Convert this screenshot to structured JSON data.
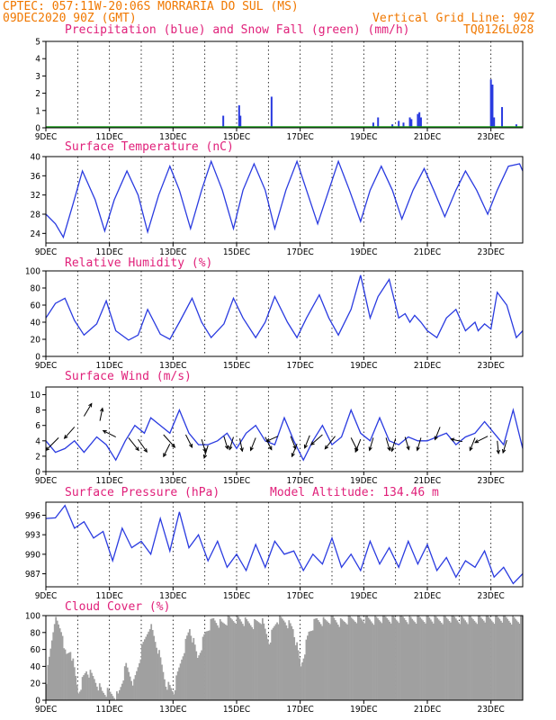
{
  "header": {
    "line1_left": "CPTEC:  057:11W-20:06S  MORRARIA DO SUL (MS)",
    "line2_left": "09DEC2020 90Z (GMT)",
    "line2_right": "Vertical Grid Line: 90Z",
    "line3_right": "TQ0126L028"
  },
  "colors": {
    "header": "#f07800",
    "title": "#e0207a",
    "line": "#2a3be0",
    "snow": "#1a9a1a",
    "cloud": "#a0a0a0",
    "arrow": "#000000"
  },
  "chart_data": [
    {
      "id": "precip",
      "type": "bar",
      "title": "Precipitation (blue) and Snow Fall (green) (mm/h)",
      "ylim": [
        0,
        5
      ],
      "yticks": [
        0,
        1,
        2,
        3,
        4,
        5
      ],
      "xlim": [
        0,
        15
      ],
      "xticks": [
        0,
        2,
        4,
        6,
        8,
        10,
        12,
        14
      ],
      "xtick_labels": [
        "9DEC",
        "11DEC",
        "13DEC",
        "15DEC",
        "17DEC",
        "19DEC",
        "21DEC",
        "23DEC"
      ],
      "series": [
        {
          "name": "Precipitation",
          "color": "#2a3be0",
          "x": [
            5.58,
            6.08,
            6.12,
            7.1,
            10.3,
            10.45,
            10.9,
            11.1,
            11.25,
            11.45,
            11.5,
            11.7,
            11.75,
            11.8,
            14.0,
            14.05,
            14.1,
            14.35,
            14.8
          ],
          "values": [
            0.7,
            1.3,
            0.7,
            1.8,
            0.3,
            0.6,
            0.2,
            0.4,
            0.3,
            0.6,
            0.5,
            0.8,
            0.9,
            0.6,
            2.8,
            2.5,
            0.6,
            1.2,
            0.2
          ]
        },
        {
          "name": "Snow Fall",
          "color": "#1a9a1a",
          "x": [
            0,
            15
          ],
          "values": [
            0,
            0
          ]
        }
      ]
    },
    {
      "id": "temperature",
      "type": "line",
      "title": "Surface Temperature (nC)",
      "ylim": [
        22,
        40
      ],
      "yticks": [
        24,
        28,
        32,
        36,
        40
      ],
      "xlim": [
        0,
        15
      ],
      "xticks": [
        0,
        2,
        4,
        6,
        8,
        10,
        12,
        14
      ],
      "xtick_labels": [
        "9DEC",
        "11DEC",
        "13DEC",
        "15DEC",
        "17DEC",
        "19DEC",
        "21DEC",
        "23DEC"
      ],
      "x": [
        0,
        0.3,
        0.55,
        0.85,
        1.15,
        1.55,
        1.85,
        2.15,
        2.55,
        2.9,
        3.2,
        3.55,
        3.9,
        4.2,
        4.55,
        4.9,
        5.2,
        5.55,
        5.9,
        6.2,
        6.55,
        6.9,
        7.2,
        7.55,
        7.9,
        8.2,
        8.55,
        8.9,
        9.2,
        9.55,
        9.9,
        10.2,
        10.55,
        10.9,
        11.2,
        11.55,
        11.9,
        12.2,
        12.55,
        12.9,
        13.2,
        13.55,
        13.9,
        14.2,
        14.55,
        14.9,
        15
      ],
      "values": [
        28,
        26,
        23.2,
        30,
        37,
        31,
        24.5,
        31,
        37,
        32,
        24.3,
        32,
        38,
        33,
        25,
        33,
        39,
        33,
        25,
        33,
        38.5,
        33,
        25,
        33,
        39,
        33,
        26,
        33,
        39,
        33,
        26.5,
        33,
        38,
        33,
        27,
        33,
        37.5,
        33,
        27.5,
        33,
        37,
        33,
        28,
        33,
        38,
        38.5,
        37
      ]
    },
    {
      "id": "humidity",
      "type": "line",
      "title": "Relative Humidity (%)",
      "ylim": [
        0,
        100
      ],
      "yticks": [
        0,
        20,
        40,
        60,
        80,
        100
      ],
      "xlim": [
        0,
        15
      ],
      "xticks": [
        0,
        2,
        4,
        6,
        8,
        10,
        12,
        14
      ],
      "xtick_labels": [
        "9DEC",
        "11DEC",
        "13DEC",
        "15DEC",
        "17DEC",
        "19DEC",
        "21DEC",
        "23DEC"
      ],
      "x": [
        0,
        0.3,
        0.6,
        0.9,
        1.2,
        1.6,
        1.9,
        2.2,
        2.6,
        2.9,
        3.2,
        3.6,
        3.9,
        4.2,
        4.6,
        4.9,
        5.2,
        5.6,
        5.9,
        6.2,
        6.6,
        6.9,
        7.2,
        7.6,
        7.9,
        8.2,
        8.6,
        8.9,
        9.2,
        9.6,
        9.9,
        10.2,
        10.45,
        10.8,
        11.1,
        11.3,
        11.45,
        11.6,
        11.8,
        12.0,
        12.3,
        12.6,
        12.9,
        13.2,
        13.5,
        13.6,
        13.8,
        14.0,
        14.2,
        14.5,
        14.8,
        15
      ],
      "values": [
        45,
        62,
        68,
        42,
        25,
        38,
        65,
        30,
        19,
        25,
        55,
        26,
        20,
        40,
        68,
        40,
        22,
        38,
        68,
        45,
        22,
        40,
        70,
        40,
        22,
        45,
        72,
        45,
        25,
        55,
        95,
        45,
        70,
        90,
        45,
        50,
        40,
        48,
        40,
        30,
        22,
        45,
        55,
        30,
        40,
        30,
        38,
        32,
        75,
        60,
        22,
        30
      ]
    },
    {
      "id": "wind",
      "type": "line",
      "title": "Surface Wind (m/s)",
      "ylim": [
        0,
        11
      ],
      "yticks": [
        0,
        2,
        4,
        6,
        8,
        10
      ],
      "xlim": [
        0,
        15
      ],
      "xticks": [
        0,
        2,
        4,
        6,
        8,
        10,
        12,
        14
      ],
      "xtick_labels": [
        "9DEC",
        "11DEC",
        "13DEC",
        "15DEC",
        "17DEC",
        "19DEC",
        "21DEC",
        "23DEC"
      ],
      "x": [
        0,
        0.3,
        0.6,
        0.9,
        1.2,
        1.6,
        1.9,
        2.2,
        2.5,
        2.8,
        3.1,
        3.3,
        3.6,
        3.9,
        4.2,
        4.5,
        4.8,
        5.1,
        5.4,
        5.7,
        6.0,
        6.3,
        6.6,
        6.9,
        7.2,
        7.5,
        7.8,
        8.1,
        8.4,
        8.7,
        9.0,
        9.3,
        9.6,
        9.9,
        10.2,
        10.5,
        10.8,
        11.1,
        11.4,
        11.7,
        12.0,
        12.3,
        12.6,
        12.9,
        13.2,
        13.5,
        13.8,
        14.1,
        14.4,
        14.7,
        15
      ],
      "values": [
        4,
        2.5,
        3,
        4,
        2.5,
        4.5,
        3.5,
        1.5,
        4,
        6,
        5,
        7,
        6,
        5,
        8,
        5,
        3.5,
        3.5,
        4,
        5,
        3,
        5,
        6,
        4,
        3.5,
        7,
        4,
        1.5,
        4,
        6,
        3.5,
        4.5,
        8,
        5,
        4,
        7,
        4,
        3.5,
        4.5,
        4,
        4,
        4.5,
        5,
        3.5,
        4.5,
        5,
        6.5,
        5,
        3.5,
        8,
        3
      ]
    },
    {
      "id": "pressure",
      "type": "line",
      "title": "Surface Pressure (hPa)",
      "annotation": "Model Altitude: 134.46 m",
      "ylim": [
        985,
        998
      ],
      "yticks": [
        987,
        990,
        993,
        996
      ],
      "xlim": [
        0,
        15
      ],
      "xticks": [
        0,
        2,
        4,
        6,
        8,
        10,
        12,
        14
      ],
      "xtick_labels": [
        "9DEC",
        "11DEC",
        "13DEC",
        "15DEC",
        "17DEC",
        "19DEC",
        "21DEC",
        "23DEC"
      ],
      "x": [
        0,
        0.3,
        0.6,
        0.9,
        1.2,
        1.5,
        1.8,
        2.1,
        2.4,
        2.7,
        3.0,
        3.3,
        3.6,
        3.9,
        4.2,
        4.5,
        4.8,
        5.1,
        5.4,
        5.7,
        6.0,
        6.3,
        6.6,
        6.9,
        7.2,
        7.5,
        7.8,
        8.1,
        8.4,
        8.7,
        9.0,
        9.3,
        9.6,
        9.9,
        10.2,
        10.5,
        10.8,
        11.1,
        11.4,
        11.7,
        12.0,
        12.3,
        12.6,
        12.9,
        13.2,
        13.5,
        13.8,
        14.1,
        14.4,
        14.7,
        15
      ],
      "values": [
        995.5,
        995.6,
        997.5,
        994,
        995,
        992.5,
        993.5,
        989,
        994,
        991,
        992,
        990,
        995.5,
        990.5,
        996.5,
        991,
        993,
        989,
        992,
        988,
        990,
        987.5,
        991.5,
        988,
        992,
        990,
        990.5,
        987.5,
        990,
        988.5,
        992.5,
        988,
        990,
        987.5,
        992,
        988.5,
        991,
        988,
        992,
        988.5,
        991.5,
        987.5,
        989.5,
        986.5,
        989,
        988,
        990.5,
        986.5,
        988,
        985.5,
        987
      ]
    },
    {
      "id": "cloud",
      "type": "bar",
      "title": "Cloud Cover (%)",
      "ylim": [
        0,
        100
      ],
      "yticks": [
        0,
        20,
        40,
        60,
        80,
        100
      ],
      "xlim": [
        0,
        15
      ],
      "xticks": [
        0,
        2,
        4,
        6,
        8,
        10,
        12,
        14
      ],
      "xtick_labels": [
        "9DEC",
        "11DEC",
        "13DEC",
        "15DEC",
        "17DEC",
        "19DEC",
        "21DEC",
        "23DEC"
      ],
      "x": [
        0,
        0.25,
        0.5,
        0.6,
        0.75,
        1.0,
        1.25,
        1.5,
        1.75,
        2.0,
        2.25,
        2.5,
        2.75,
        3.0,
        3.25,
        3.5,
        3.75,
        4.0,
        4.25,
        4.5,
        4.75,
        5.0,
        5.25,
        5.5,
        5.75,
        6.0,
        6.25,
        6.5,
        6.75,
        7.0,
        7.25,
        7.5,
        7.75,
        8.0,
        8.25,
        8.5,
        8.75,
        9.0,
        9.25,
        9.5,
        9.75,
        10.0,
        10.25,
        10.5,
        10.75,
        11.0,
        11.25,
        11.5,
        11.75,
        12.0,
        12.25,
        12.5,
        12.75,
        13.0,
        13.25,
        13.5,
        13.75,
        14.0,
        14.25,
        14.5,
        14.75,
        15.0
      ],
      "values": [
        25,
        95,
        80,
        50,
        60,
        10,
        35,
        25,
        10,
        8,
        5,
        40,
        20,
        60,
        90,
        60,
        20,
        10,
        50,
        85,
        50,
        80,
        95,
        90,
        95,
        96,
        92,
        90,
        95,
        70,
        95,
        94,
        85,
        40,
        80,
        95,
        93,
        96,
        92,
        95,
        97,
        96,
        95,
        96,
        97,
        96,
        97,
        95,
        96,
        97,
        95,
        96,
        97,
        96,
        95,
        96,
        97,
        96,
        97,
        96,
        95,
        96
      ]
    }
  ],
  "wind_arrows": [
    {
      "x": 0.4,
      "y": 4.4,
      "u": -1,
      "v": -1
    },
    {
      "x": 0.9,
      "y": 5.8,
      "u": -0.8,
      "v": -0.9
    },
    {
      "x": 1.2,
      "y": 7.2,
      "u": 0.6,
      "v": 1
    },
    {
      "x": 1.7,
      "y": 6.6,
      "u": 0.2,
      "v": 1
    },
    {
      "x": 2.2,
      "y": 4.5,
      "u": -1,
      "v": 0.5
    },
    {
      "x": 2.6,
      "y": 4.4,
      "u": 0.8,
      "v": -1
    },
    {
      "x": 2.9,
      "y": 4.2,
      "u": 0.7,
      "v": -1
    },
    {
      "x": 3.7,
      "y": 4.8,
      "u": 0.9,
      "v": -1
    },
    {
      "x": 3.9,
      "y": 3.6,
      "u": -0.5,
      "v": -1
    },
    {
      "x": 4.4,
      "y": 4.8,
      "u": 0.5,
      "v": -1
    },
    {
      "x": 4.9,
      "y": 4.2,
      "u": 0.3,
      "v": -1
    },
    {
      "x": 5.1,
      "y": 3.4,
      "u": -0.3,
      "v": -1
    },
    {
      "x": 5.6,
      "y": 4.6,
      "u": 0.3,
      "v": -1
    },
    {
      "x": 5.9,
      "y": 4.5,
      "u": -0.3,
      "v": -1
    },
    {
      "x": 6.1,
      "y": 4.3,
      "u": 0.2,
      "v": -1
    },
    {
      "x": 6.6,
      "y": 4.4,
      "u": -0.4,
      "v": -1
    },
    {
      "x": 6.9,
      "y": 4.5,
      "u": 0.5,
      "v": -1
    },
    {
      "x": 7.3,
      "y": 4.6,
      "u": -0.9,
      "v": -0.4
    },
    {
      "x": 7.7,
      "y": 4.6,
      "u": 0.4,
      "v": -1
    },
    {
      "x": 7.9,
      "y": 3.6,
      "u": -0.4,
      "v": -1
    },
    {
      "x": 8.3,
      "y": 4.7,
      "u": -0.4,
      "v": -1
    },
    {
      "x": 8.7,
      "y": 4.8,
      "u": -0.9,
      "v": -0.8
    },
    {
      "x": 9.1,
      "y": 4.6,
      "u": -0.8,
      "v": -1
    },
    {
      "x": 9.6,
      "y": 4.4,
      "u": 0.5,
      "v": -1
    },
    {
      "x": 9.9,
      "y": 4.2,
      "u": -0.4,
      "v": -1
    },
    {
      "x": 10.3,
      "y": 4.4,
      "u": -0.3,
      "v": -1
    },
    {
      "x": 10.7,
      "y": 4.4,
      "u": 0.3,
      "v": -1
    },
    {
      "x": 11.0,
      "y": 4.3,
      "u": -0.3,
      "v": -1
    },
    {
      "x": 11.3,
      "y": 4.5,
      "u": 0.3,
      "v": -1
    },
    {
      "x": 11.8,
      "y": 4.4,
      "u": -0.3,
      "v": -1
    },
    {
      "x": 12.4,
      "y": 5.8,
      "u": -0.4,
      "v": -1
    },
    {
      "x": 13.1,
      "y": 3.9,
      "u": -0.9,
      "v": 0.2
    },
    {
      "x": 13.5,
      "y": 4.4,
      "u": -0.4,
      "v": -1
    },
    {
      "x": 13.9,
      "y": 4.6,
      "u": -1,
      "v": -0.5
    },
    {
      "x": 14.2,
      "y": 4.0,
      "u": 0.1,
      "v": -1
    },
    {
      "x": 14.5,
      "y": 4.1,
      "u": -0.3,
      "v": -1
    }
  ]
}
